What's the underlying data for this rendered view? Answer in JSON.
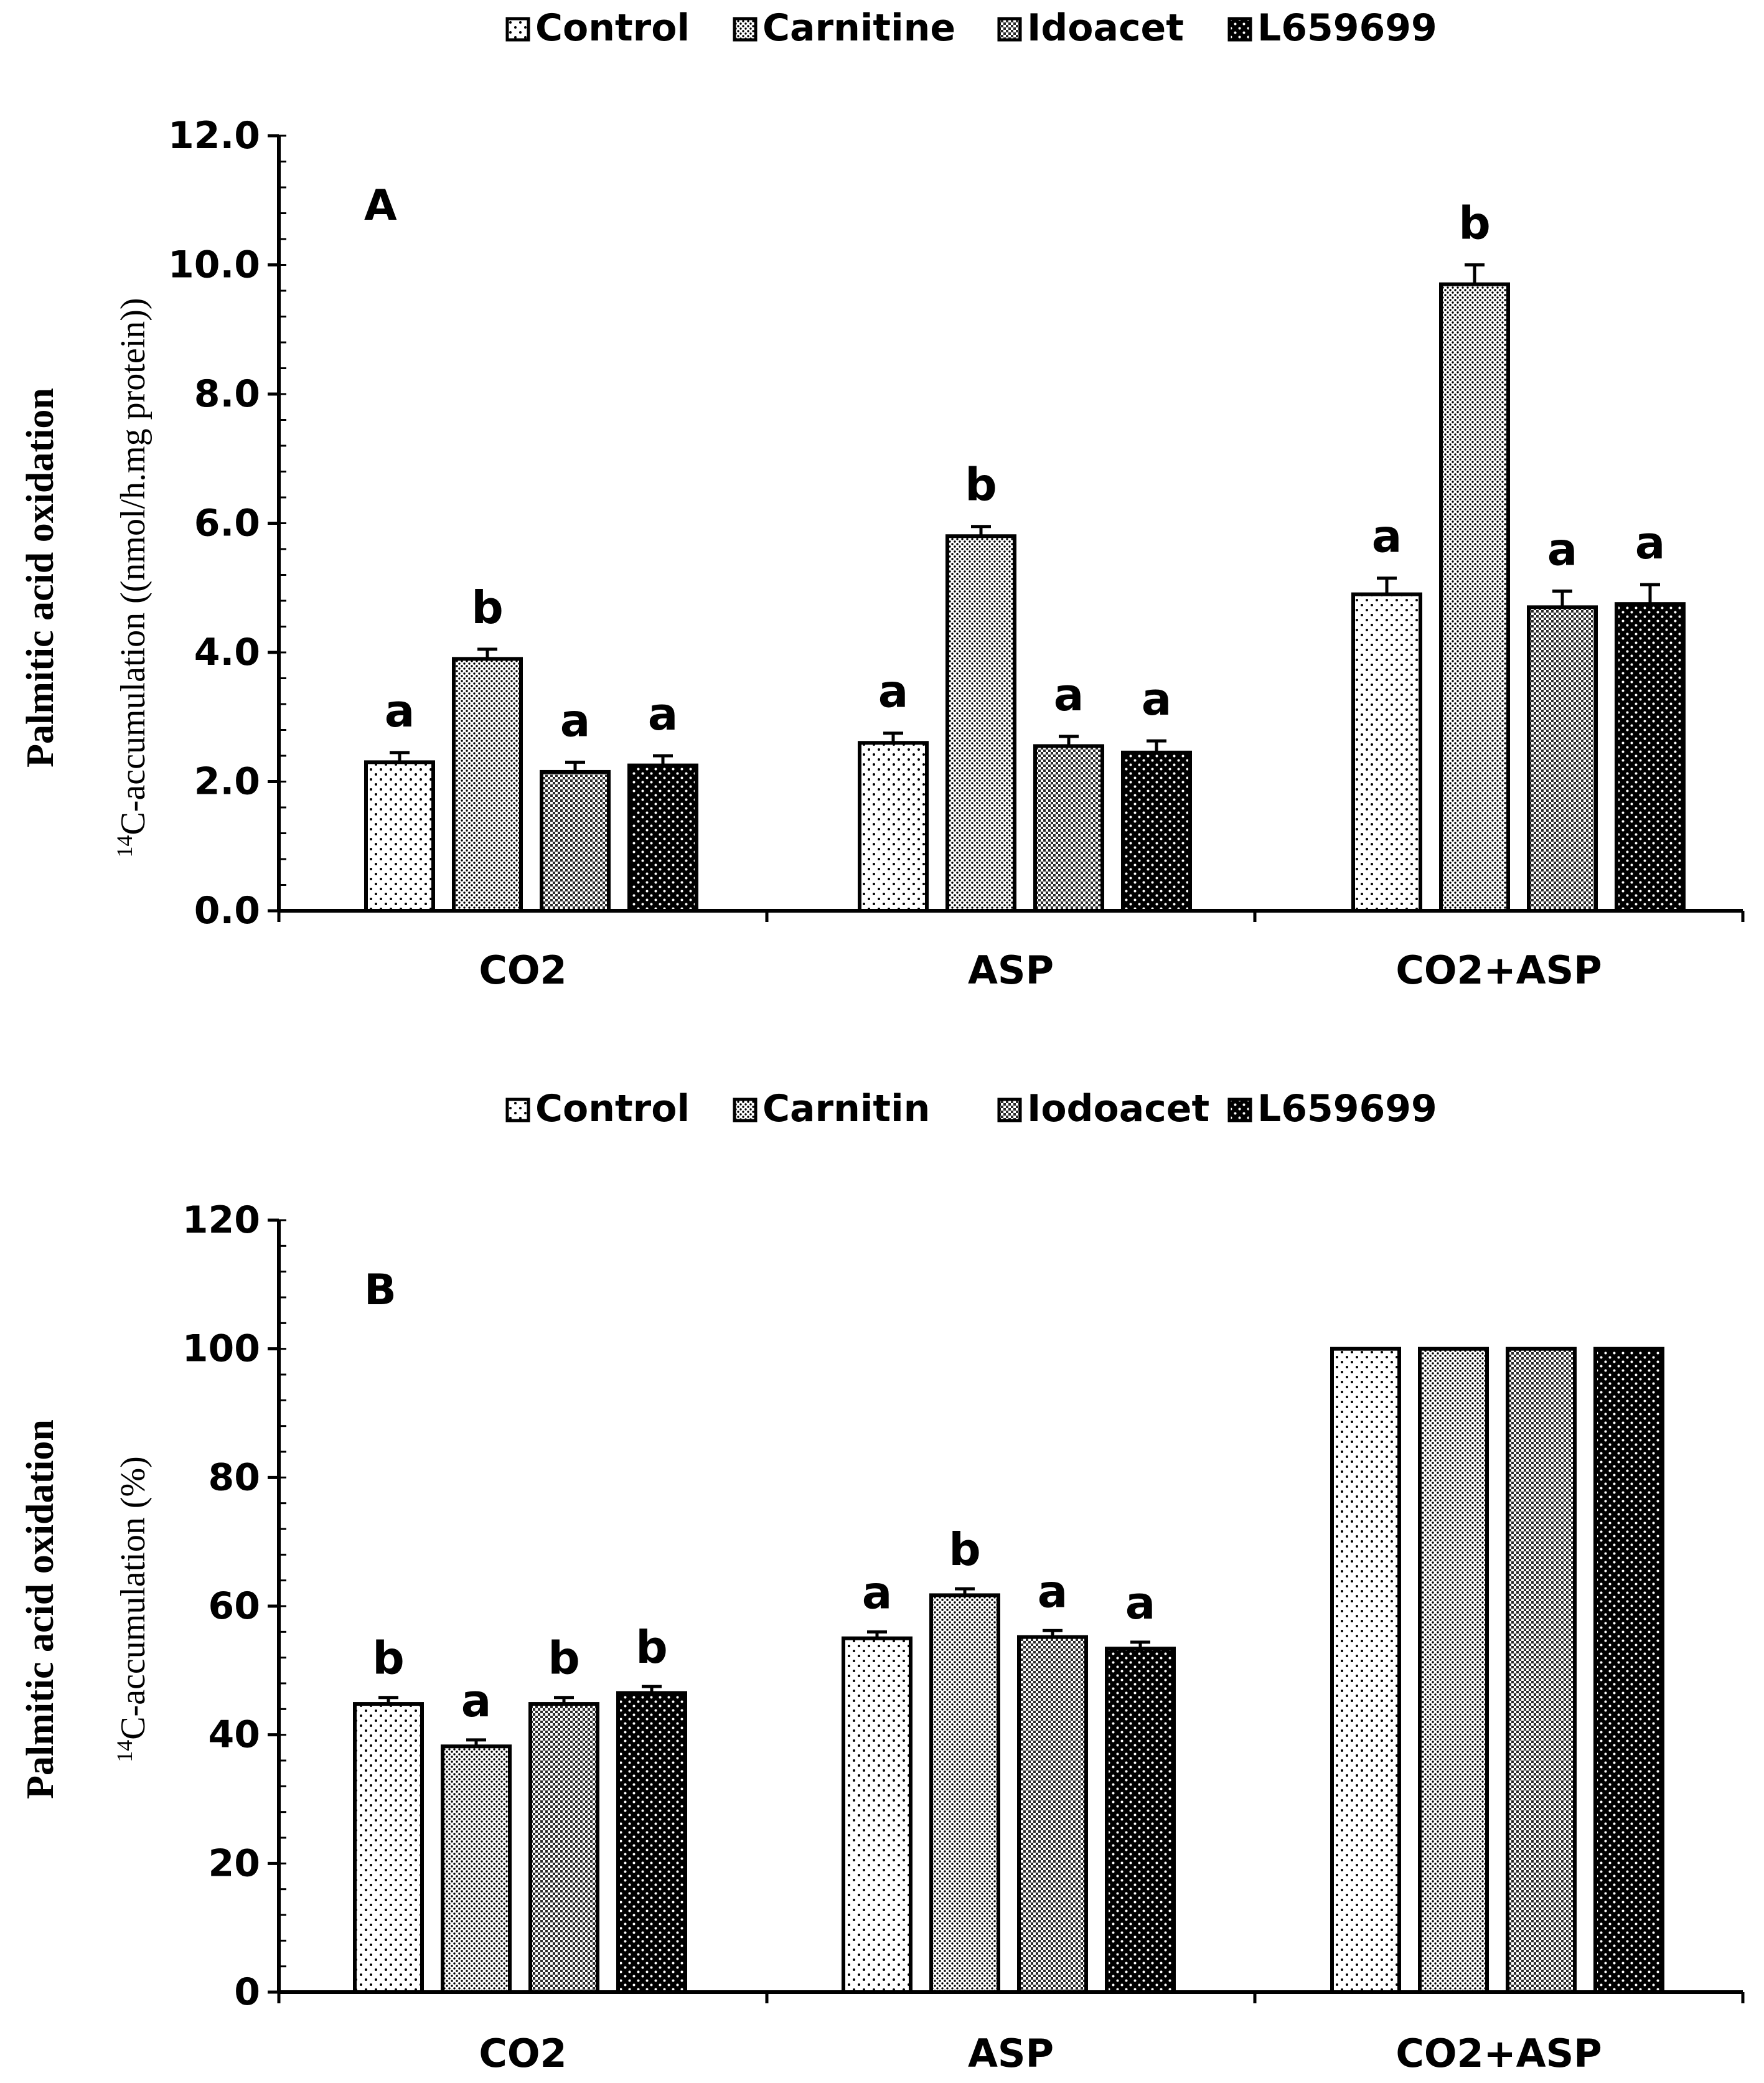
{
  "chart_data": [
    {
      "panel": "A",
      "type": "bar",
      "categories": [
        "CO2",
        "ASP",
        "CO2+ASP"
      ],
      "series": [
        {
          "name": "Control",
          "pattern": "sparse-dots",
          "values": [
            2.3,
            2.6,
            4.9
          ],
          "errors": [
            0.15,
            0.15,
            0.25
          ],
          "letters": [
            "a",
            "a",
            "a"
          ]
        },
        {
          "name": "Carnitine",
          "pattern": "dense-dots",
          "values": [
            3.9,
            5.8,
            9.7
          ],
          "errors": [
            0.15,
            0.15,
            0.3
          ],
          "letters": [
            "b",
            "b",
            "b"
          ]
        },
        {
          "name": "Idoacet",
          "pattern": "checker",
          "values": [
            2.15,
            2.55,
            4.7
          ],
          "errors": [
            0.15,
            0.15,
            0.25
          ],
          "letters": [
            "a",
            "a",
            "a"
          ]
        },
        {
          "name": "L659699",
          "pattern": "dark-dots",
          "values": [
            2.25,
            2.45,
            4.75
          ],
          "errors": [
            0.15,
            0.18,
            0.3
          ],
          "letters": [
            "a",
            "a",
            "a"
          ]
        }
      ],
      "ylabel_line1": "Palmitic acid oxidation",
      "ylabel_sup": "14",
      "ylabel_line2": "C-accumulation ((nmol/h.mg protein))",
      "ylim": [
        0,
        12
      ],
      "yticks": [
        0,
        2,
        4,
        6,
        8,
        10,
        12
      ],
      "ytick_labels": [
        "0.0",
        "2.0",
        "4.0",
        "6.0",
        "8.0",
        "10.0",
        "12.0"
      ],
      "minor_step": 0.4,
      "legend_position": "top-center"
    },
    {
      "panel": "B",
      "type": "bar",
      "categories": [
        "CO2",
        "ASP",
        "CO2+ASP"
      ],
      "series": [
        {
          "name": "Control",
          "pattern": "sparse-dots",
          "values": [
            44.8,
            55.0,
            100
          ],
          "errors": [
            1.0,
            1.0,
            0
          ],
          "letters": [
            "b",
            "a",
            ""
          ]
        },
        {
          "name": "Carnitin",
          "pattern": "dense-dots",
          "values": [
            38.2,
            61.7,
            100
          ],
          "errors": [
            1.0,
            1.0,
            0
          ],
          "letters": [
            "a",
            "b",
            ""
          ]
        },
        {
          "name": "Iodoacet",
          "pattern": "checker",
          "values": [
            44.8,
            55.2,
            100
          ],
          "errors": [
            1.0,
            1.0,
            0
          ],
          "letters": [
            "b",
            "a",
            ""
          ]
        },
        {
          "name": "L659699",
          "pattern": "dark-dots",
          "values": [
            46.5,
            53.4,
            100
          ],
          "errors": [
            1.0,
            1.0,
            0
          ],
          "letters": [
            "b",
            "a",
            ""
          ]
        }
      ],
      "ylabel_line1": "Palmitic acid oxidation",
      "ylabel_sup": "14",
      "ylabel_line2": "C-accumulation (%)",
      "ylim": [
        0,
        120
      ],
      "yticks": [
        0,
        20,
        40,
        60,
        80,
        100,
        120
      ],
      "ytick_labels": [
        "0",
        "20",
        "40",
        "60",
        "80",
        "100",
        "120"
      ],
      "minor_step": 4,
      "legend_position": "top-center"
    }
  ]
}
